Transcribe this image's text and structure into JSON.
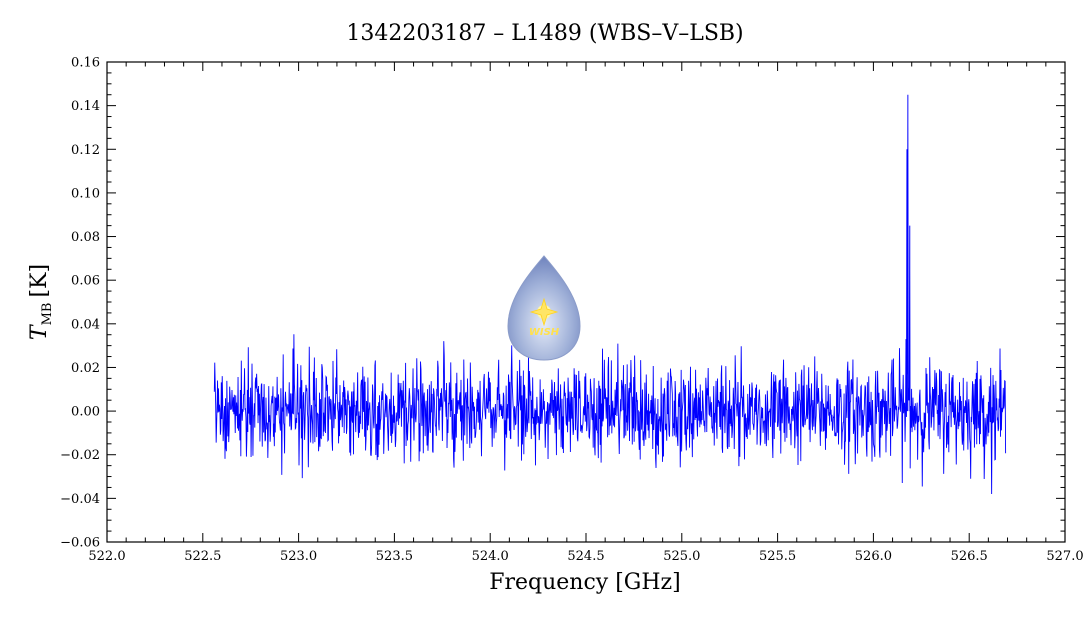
{
  "chart_data": {
    "type": "line",
    "title": "1342203187 – L1489 (WBS–V–LSB)",
    "xlabel": "Frequency [GHz]",
    "ylabel": {
      "symbol": "T",
      "subscript": "MB",
      "unit": "[K]"
    },
    "xlim": [
      522.0,
      527.0
    ],
    "ylim": [
      -0.06,
      0.16
    ],
    "x_ticks": [
      "522.0",
      "522.5",
      "523.0",
      "523.5",
      "524.0",
      "524.5",
      "525.0",
      "525.5",
      "526.0",
      "526.5",
      "527.0"
    ],
    "y_ticks": [
      "−0.06",
      "−0.04",
      "−0.02",
      "0.00",
      "0.02",
      "0.04",
      "0.06",
      "0.08",
      "0.10",
      "0.12",
      "0.14",
      "0.16"
    ],
    "grid": false,
    "legend": "none",
    "series": [
      {
        "color": "#0000ff",
        "x_start": 522.56,
        "x_end": 526.69,
        "noise_rms": 0.011,
        "peaks": [
          {
            "x": 526.18,
            "y": 0.145
          },
          {
            "x": 526.175,
            "y": 0.12
          },
          {
            "x": 526.19,
            "y": 0.085
          },
          {
            "x": 526.17,
            "y": 0.033
          }
        ]
      }
    ]
  },
  "logo": {
    "name": "wish-logo",
    "text": "WISH"
  }
}
